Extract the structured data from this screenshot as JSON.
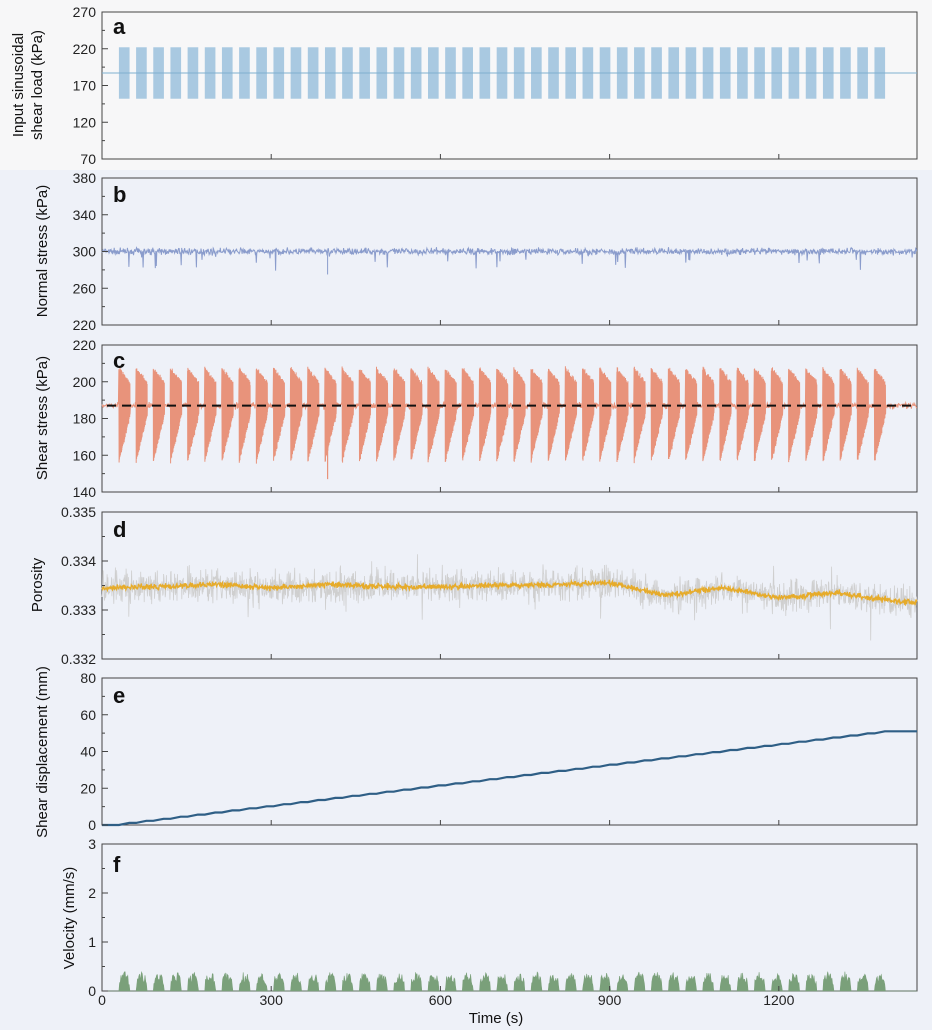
{
  "chart_data": [
    {
      "panel": "a",
      "type": "area",
      "ylabel_line1": "Input sinusoidal",
      "ylabel_line2": "shear load (kPa)",
      "ylim": [
        70,
        270
      ],
      "yticks": [
        "70",
        "120",
        "170",
        "220",
        "270"
      ],
      "series": [
        {
          "name": "input sinusoidal shear load",
          "mean": 187,
          "amplitude": 35,
          "cycles": 45,
          "color": "#a9c9e1"
        }
      ],
      "reference_line": 187
    },
    {
      "panel": "b",
      "type": "line",
      "ylabel": "Normal stress (kPa)",
      "ylim": [
        220,
        380
      ],
      "yticks": [
        "220",
        "260",
        "300",
        "340",
        "380"
      ],
      "series": [
        {
          "name": "normal stress",
          "mean": 300,
          "noise": 3,
          "min_spike": 275,
          "color": "#8a9ccc"
        }
      ]
    },
    {
      "panel": "c",
      "type": "area",
      "ylabel": "Shear stress (kPa)",
      "ylim": [
        140,
        220
      ],
      "yticks": [
        "140",
        "160",
        "180",
        "200",
        "220"
      ],
      "series": [
        {
          "name": "shear stress",
          "mean": 187,
          "upper": 207,
          "lower": 157,
          "cycles": 45,
          "min_spike": 147,
          "color": "#e8937b"
        }
      ],
      "dashed_line": 187
    },
    {
      "panel": "d",
      "type": "line",
      "ylabel": "Porosity",
      "ylim": [
        0.332,
        0.335
      ],
      "yticks": [
        "0.332",
        "0.333",
        "0.334",
        "0.335"
      ],
      "series": [
        {
          "name": "raw porosity",
          "mean": 0.3335,
          "noise": 0.0004,
          "color": "#cfcfcf"
        },
        {
          "name": "smoothed porosity",
          "x": [
            0,
            100,
            200,
            300,
            400,
            500,
            600,
            700,
            800,
            900,
            1000,
            1100,
            1200,
            1300,
            1400,
            1440
          ],
          "y": [
            0.33345,
            0.33348,
            0.33352,
            0.33345,
            0.33352,
            0.33348,
            0.33347,
            0.3335,
            0.33352,
            0.33355,
            0.3333,
            0.33345,
            0.33325,
            0.33335,
            0.3332,
            0.33315
          ],
          "color": "#e6ab2a"
        }
      ]
    },
    {
      "panel": "e",
      "type": "line",
      "ylabel": "Shear displacement (mm)",
      "ylim": [
        0,
        80
      ],
      "yticks": [
        "0",
        "20",
        "40",
        "60",
        "80"
      ],
      "series": [
        {
          "name": "shear displacement",
          "x": [
            0,
            30,
            1395,
            1445
          ],
          "y": [
            0,
            0,
            51,
            51
          ],
          "steps": 45,
          "color": "#2f5f86"
        }
      ]
    },
    {
      "panel": "f",
      "type": "area",
      "ylabel": "Velocity (mm/s)",
      "ylim": [
        0,
        3
      ],
      "yticks": [
        "0",
        "1",
        "2",
        "3"
      ],
      "series": [
        {
          "name": "velocity",
          "peak": 0.4,
          "cycles": 45,
          "color": "#7aa07a"
        }
      ]
    }
  ],
  "x_axis": {
    "label": "Time (s)",
    "xlim": [
      0,
      1445
    ],
    "ticks": [
      "0",
      "300",
      "600",
      "900",
      "1200"
    ],
    "cycle_start": 30,
    "cycle_end": 1400
  }
}
